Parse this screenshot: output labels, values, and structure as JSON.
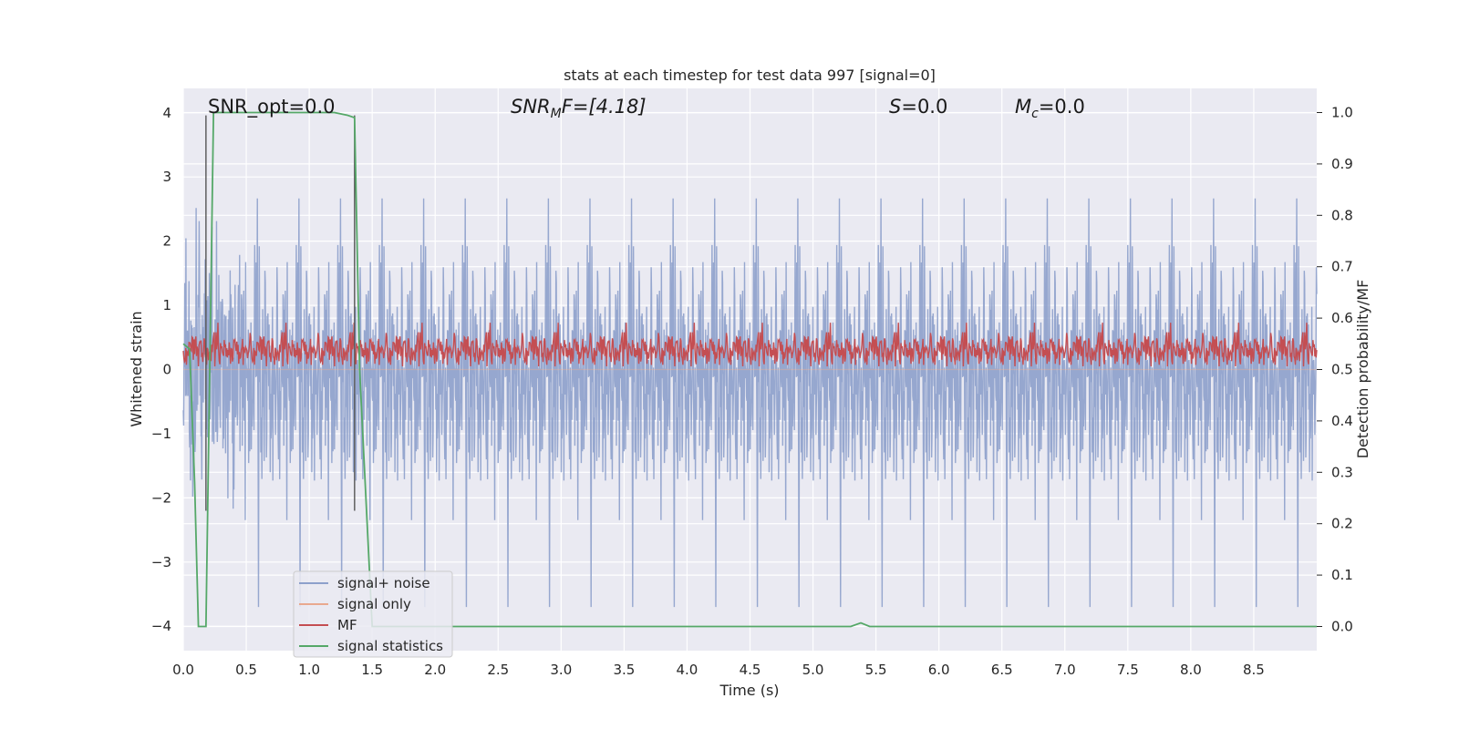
{
  "chart_data": {
    "type": "line",
    "title": "stats at each timestep for test data 997 [signal=0]",
    "xlabel": "Time (s)",
    "ylabel": "Whitened strain",
    "ylabel_right": "Detection probability/MF",
    "xlim": [
      0,
      9.0
    ],
    "ylim": [
      -4.38,
      4.38
    ],
    "ylim_right": [
      -0.047,
      1.047
    ],
    "x_ticks": [
      "0.0",
      "0.5",
      "1.0",
      "1.5",
      "2.0",
      "2.5",
      "3.0",
      "3.5",
      "4.0",
      "4.5",
      "5.0",
      "5.5",
      "6.0",
      "6.5",
      "7.0",
      "7.5",
      "8.0",
      "8.5"
    ],
    "y_ticks": [
      "4",
      "3",
      "2",
      "1",
      "0",
      "−1",
      "−2",
      "−3",
      "−4"
    ],
    "y_tick_values": [
      4,
      3,
      2,
      1,
      0,
      -1,
      -2,
      -3,
      -4
    ],
    "y_right_ticks": [
      "1.0",
      "0.9",
      "0.8",
      "0.7",
      "0.6",
      "0.5",
      "0.4",
      "0.3",
      "0.2",
      "0.1",
      "0.0"
    ],
    "y_right_tick_values": [
      1.0,
      0.9,
      0.8,
      0.7,
      0.6,
      0.5,
      0.4,
      0.3,
      0.2,
      0.1,
      0.0
    ],
    "grid": true,
    "legend_position": "lower-left",
    "annotations": {
      "snr_opt_text": "SNR_opt=0.0",
      "snr_mf_main": "SNR",
      "snr_mf_sub": "M",
      "snr_mf_rest": "F=[4.18]",
      "s_main": "S",
      "s_rest": "=0.0",
      "mc_main": "M",
      "mc_sub": "c",
      "mc_rest": "=0.0"
    },
    "series": [
      {
        "name": "signal+ noise",
        "color": "#8da0cb",
        "axis": "left",
        "kind": "noise",
        "amplitude_std": 1.0,
        "peak_max": 3.96,
        "peak_min": -3.7
      },
      {
        "name": "signal only",
        "color": "#e9a98f",
        "axis": "left",
        "kind": "flat",
        "value": 0
      },
      {
        "name": "MF",
        "color": "#c44e52",
        "axis": "left",
        "kind": "mf",
        "mean": 0.33,
        "max": 1.0
      },
      {
        "name": "signal statistics",
        "color": "#55a868",
        "axis": "right",
        "x": [
          0.0,
          0.05,
          0.09,
          0.12,
          0.18,
          0.24,
          0.3,
          0.5,
          1.0,
          1.2,
          1.3,
          1.36,
          1.4,
          1.44,
          1.5,
          2.0,
          3.0,
          4.0,
          5.0,
          5.3,
          5.38,
          5.45,
          6.0,
          7.0,
          8.0,
          9.0
        ],
        "y": [
          0.55,
          0.54,
          0.28,
          0.0,
          0.0,
          1.0,
          1.0,
          1.0,
          1.0,
          1.0,
          0.995,
          0.99,
          0.5,
          0.3,
          0.0,
          0.0,
          0.0,
          0.0,
          0.0,
          0.0,
          0.007,
          0.0,
          0.0,
          0.0,
          0.0,
          0.0
        ]
      },
      {
        "name": "",
        "color": "#555555",
        "axis": "left",
        "kind": "vline",
        "x": [
          0.18,
          1.36
        ]
      }
    ]
  },
  "legend": {
    "items": [
      {
        "label": "signal+ noise",
        "color": "#8da0cb"
      },
      {
        "label": "signal only",
        "color": "#e9a98f"
      },
      {
        "label": "MF",
        "color": "#c44e52"
      },
      {
        "label": "signal statistics",
        "color": "#55a868"
      }
    ]
  },
  "colors": {
    "plot_background": "#eaeaf2",
    "grid": "#ffffff",
    "text": "#262626"
  }
}
